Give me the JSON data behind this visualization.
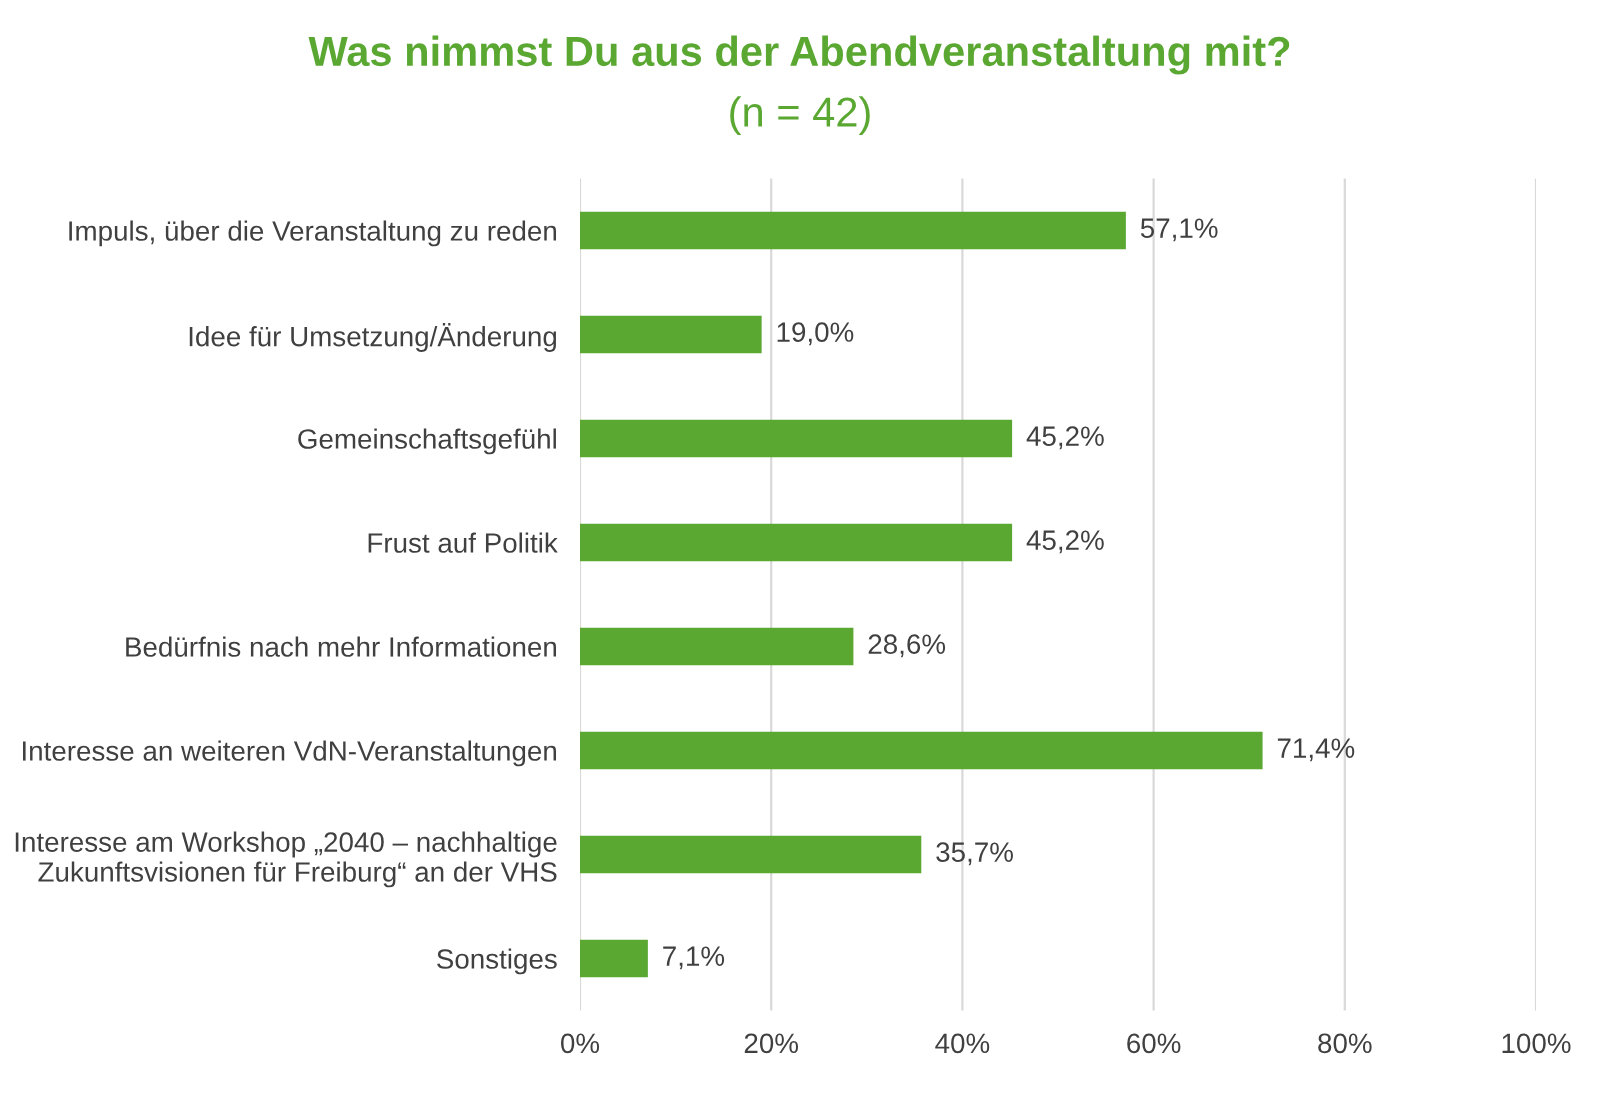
{
  "chart_data": {
    "type": "bar",
    "orientation": "horizontal",
    "title": "Was nimmst Du aus der Abendveranstaltung mit?",
    "subtitle": "(n = 42)",
    "categories": [
      "Impuls, über die Veranstaltung zu reden",
      "Idee für Umsetzung/Änderung",
      "Gemeinschaftsgefühl",
      "Frust auf Politik",
      "Bedürfnis nach mehr Informationen",
      "Interesse an weiteren VdN-Veranstaltungen",
      "Interesse am Workshop „2040 – nachhaltige\nZukunftsvisionen für Freiburg“ an der VHS",
      "Sonstiges"
    ],
    "values": [
      57.1,
      19.0,
      45.2,
      45.2,
      28.6,
      71.4,
      35.7,
      7.1
    ],
    "value_labels": [
      "57,1%",
      "19,0%",
      "45,2%",
      "45,2%",
      "28,6%",
      "71,4%",
      "35,7%",
      "7,1%"
    ],
    "color": "#5aa832",
    "xlim": [
      0,
      100
    ],
    "xticks": [
      {
        "value": 0,
        "label": "0%"
      },
      {
        "value": 20,
        "label": "20%"
      },
      {
        "value": 40,
        "label": "40%"
      },
      {
        "value": 60,
        "label": "60%"
      },
      {
        "value": 80,
        "label": "80%"
      },
      {
        "value": 100,
        "label": "100%"
      }
    ],
    "grid": "x",
    "legend": false
  }
}
